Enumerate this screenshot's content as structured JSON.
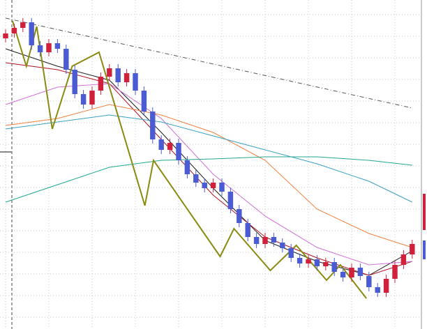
{
  "chart_data": {
    "type": "candlestick",
    "xlim": [
      -0.5,
      47.5
    ],
    "ylim": [
      0,
      472
    ],
    "xticks": [
      0,
      5,
      10,
      15,
      20,
      25,
      30,
      35,
      40,
      45
    ],
    "yticks": [
      17,
      48,
      79,
      110,
      141,
      172,
      203,
      234,
      265,
      296,
      327,
      358,
      389,
      420,
      451
    ],
    "grid": true,
    "up_color": "#d0203c",
    "down_color": "#4a5bd4",
    "open": [
      417,
      424,
      432,
      440,
      407,
      397,
      410,
      402,
      372,
      337,
      322,
      342,
      362,
      374,
      354,
      367,
      342,
      312,
      272,
      257,
      267,
      242,
      222,
      210,
      202,
      210,
      197,
      172,
      152,
      132,
      122,
      132,
      124,
      116,
      102,
      94,
      100,
      90,
      96,
      82,
      74,
      88,
      76,
      60,
      52,
      72,
      92,
      107
    ],
    "close": [
      424,
      432,
      440,
      407,
      397,
      410,
      402,
      372,
      337,
      322,
      342,
      362,
      374,
      354,
      367,
      342,
      312,
      272,
      257,
      267,
      242,
      222,
      210,
      202,
      210,
      197,
      172,
      152,
      132,
      122,
      132,
      124,
      116,
      102,
      94,
      100,
      90,
      96,
      82,
      74,
      88,
      76,
      60,
      52,
      72,
      92,
      107,
      122
    ],
    "high": [
      430,
      438,
      446,
      446,
      413,
      416,
      416,
      408,
      378,
      343,
      348,
      368,
      380,
      380,
      373,
      373,
      348,
      318,
      278,
      273,
      273,
      248,
      228,
      216,
      216,
      216,
      203,
      178,
      158,
      138,
      138,
      138,
      130,
      122,
      108,
      106,
      106,
      102,
      102,
      88,
      94,
      94,
      82,
      66,
      78,
      98,
      113,
      128
    ],
    "low": [
      411,
      418,
      426,
      401,
      391,
      391,
      396,
      366,
      331,
      316,
      316,
      336,
      356,
      348,
      348,
      336,
      306,
      266,
      251,
      251,
      236,
      216,
      204,
      196,
      196,
      191,
      166,
      146,
      126,
      116,
      116,
      118,
      110,
      96,
      88,
      88,
      84,
      84,
      76,
      68,
      68,
      70,
      54,
      46,
      46,
      66,
      86,
      101
    ],
    "series": [
      {
        "color": "#1a1a1a",
        "x": [
          0,
          6,
          12,
          18,
          24,
          30,
          36,
          42,
          47
        ],
        "values": [
          402,
          377,
          357,
          282,
          202,
          127,
          97,
          77,
          112
        ]
      },
      {
        "color": "#b01020",
        "x": [
          0,
          6,
          12,
          18,
          24,
          30,
          36,
          42,
          47
        ],
        "values": [
          382,
          372,
          352,
          272,
          192,
          132,
          102,
          77,
          97
        ]
      },
      {
        "color": "#d070d8",
        "x": [
          0,
          6,
          12,
          18,
          24,
          30,
          36,
          42,
          47
        ],
        "values": [
          322,
          347,
          352,
          302,
          222,
          162,
          117,
          92,
          97
        ]
      },
      {
        "color": "#f08040",
        "x": [
          0,
          6,
          12,
          18,
          24,
          30,
          36,
          42,
          47
        ],
        "values": [
          292,
          302,
          322,
          307,
          282,
          242,
          172,
          137,
          117
        ]
      },
      {
        "color": "#3aa0c0",
        "x": [
          0,
          6,
          12,
          18,
          24,
          30,
          36,
          42,
          47
        ],
        "values": [
          287,
          297,
          307,
          297,
          277,
          257,
          237,
          212,
          182
        ]
      },
      {
        "color": "#20a890",
        "x": [
          0,
          6,
          12,
          18,
          24,
          30,
          36,
          42,
          47
        ],
        "values": [
          182,
          207,
          232,
          242,
          244,
          247,
          247,
          242,
          235
        ]
      },
      {
        "color": "#8a8a10",
        "x": [
          0.8,
          2.4,
          3.6,
          5.4,
          7.7,
          10.8,
          16.1,
          17.1,
          24.8,
          26.4,
          30.6,
          33.6,
          37.1,
          38.7,
          41.7
        ],
        "values": [
          442,
          377,
          434,
          287,
          377,
          397,
          177,
          242,
          104,
          144,
          84,
          120,
          70,
          92,
          44
        ]
      },
      {
        "color": "#555555",
        "dashed": true,
        "x": [
          0,
          47
        ],
        "values": [
          446,
          317
        ]
      }
    ]
  }
}
